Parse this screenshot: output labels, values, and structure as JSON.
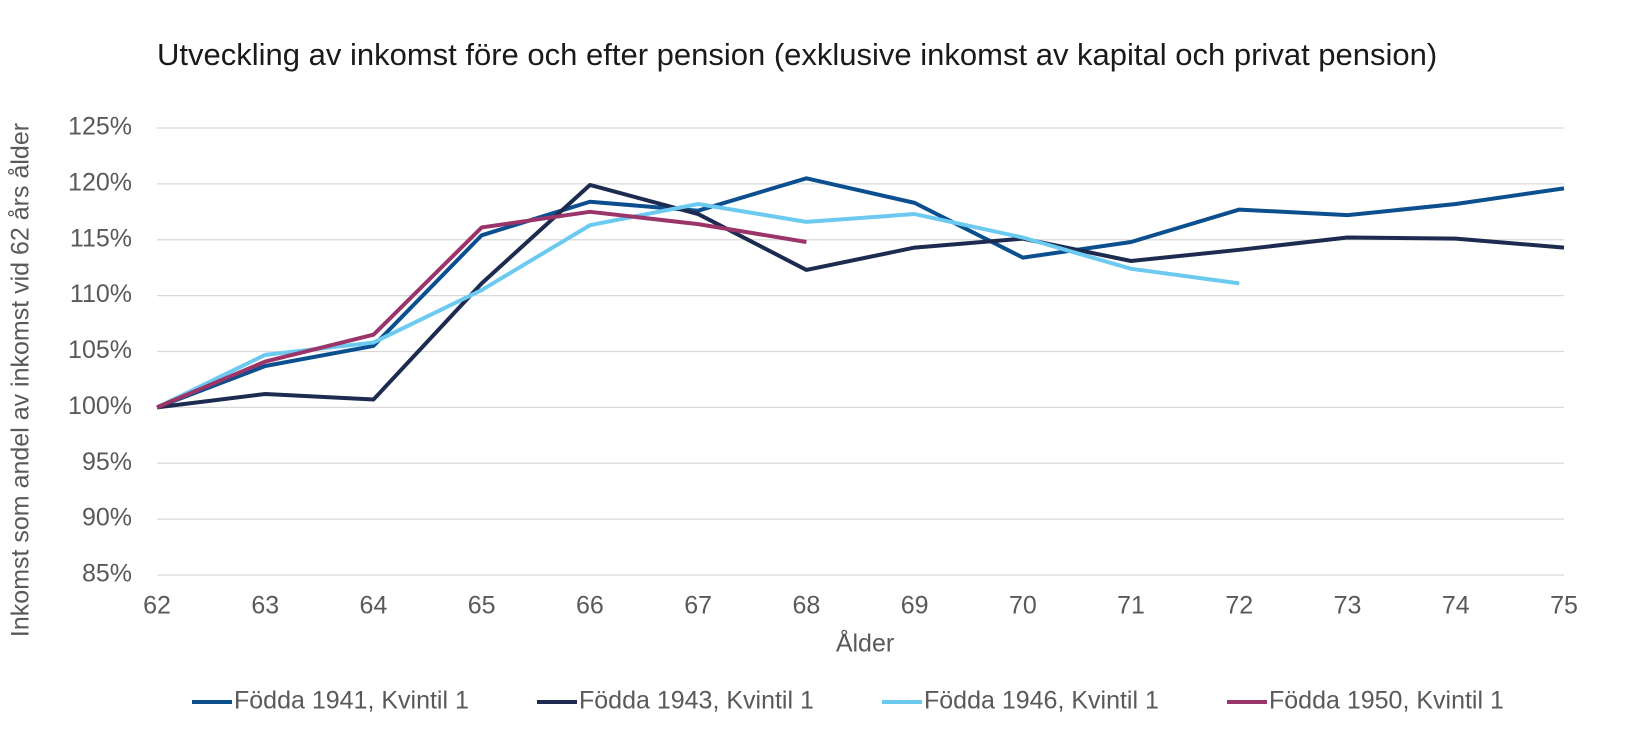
{
  "chart_data": {
    "type": "line",
    "title": "Utveckling av inkomst före och efter pension (exklusive inkomst av kapital och privat pension)",
    "x_label": "Ålder",
    "y_label": "Inkomst som andel av inkomst vid 62 års ålder",
    "x": [
      62,
      63,
      64,
      65,
      66,
      67,
      68,
      69,
      70,
      71,
      72,
      73,
      74,
      75
    ],
    "xlim": [
      62,
      75
    ],
    "xticks": [
      62,
      63,
      64,
      65,
      66,
      67,
      68,
      69,
      70,
      71,
      72,
      73,
      74,
      75
    ],
    "ylim": [
      85,
      125
    ],
    "yticks": [
      {
        "value": 85,
        "label": "85%"
      },
      {
        "value": 90,
        "label": "90%"
      },
      {
        "value": 95,
        "label": "95%"
      },
      {
        "value": 100,
        "label": "100%"
      },
      {
        "value": 105,
        "label": "105%"
      },
      {
        "value": 110,
        "label": "110%"
      },
      {
        "value": 115,
        "label": "115%"
      },
      {
        "value": 120,
        "label": "120%"
      },
      {
        "value": 125,
        "label": "125%"
      }
    ],
    "grid": true,
    "legend": "bottom",
    "series": [
      {
        "name": "Födda 1941, Kvintil 1",
        "color": "#0b4f8f",
        "values": [
          100,
          103.7,
          105.5,
          115.4,
          118.4,
          117.6,
          120.5,
          118.3,
          113.4,
          114.8,
          117.7,
          117.2,
          118.2,
          119.6
        ]
      },
      {
        "name": "Födda 1943, Kvintil 1",
        "color": "#1c2b4f",
        "values": [
          100,
          101.2,
          100.7,
          111.1,
          119.9,
          117.3,
          112.3,
          114.3,
          115.1,
          113.1,
          114.1,
          115.2,
          115.1,
          114.3
        ]
      },
      {
        "name": "Födda 1946, Kvintil 1",
        "color": "#6ccaf0",
        "values": [
          100,
          104.7,
          105.8,
          110.5,
          116.3,
          118.2,
          116.6,
          117.3,
          115.2,
          112.4,
          111.1,
          null,
          null,
          null
        ]
      },
      {
        "name": "Födda 1950, Kvintil 1",
        "color": "#9b3468",
        "values": [
          100,
          104.1,
          106.5,
          116.1,
          117.5,
          116.4,
          114.8,
          null,
          null,
          null,
          null,
          null,
          null,
          null
        ]
      }
    ]
  }
}
